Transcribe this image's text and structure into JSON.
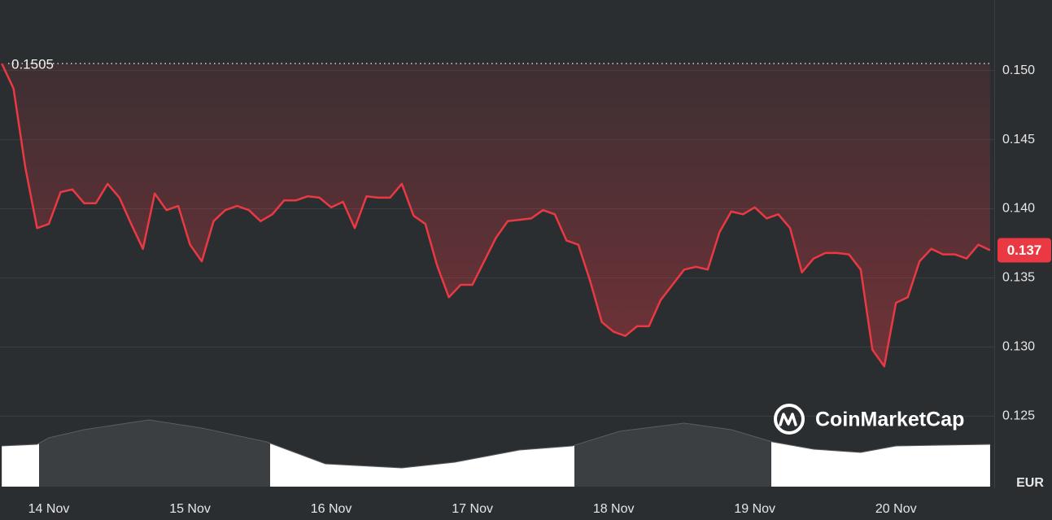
{
  "chart_data": {
    "type": "line",
    "color": "#ea3943",
    "x": [
      -8,
      -6,
      -4,
      -2,
      0,
      2,
      4,
      6,
      8,
      10,
      12,
      14,
      16,
      18,
      20,
      22,
      24,
      26,
      28,
      30,
      32,
      34,
      36,
      38,
      40,
      42,
      44,
      46,
      48,
      50,
      52,
      54,
      56,
      58,
      60,
      62,
      64,
      66,
      68,
      70,
      72,
      74,
      76,
      78,
      80,
      82,
      84,
      86,
      88,
      90,
      92,
      94,
      96,
      98,
      100,
      102,
      104,
      106,
      108,
      110,
      112,
      114,
      116,
      118,
      120,
      122,
      124,
      126,
      128,
      130,
      132,
      134,
      136,
      138,
      140,
      142,
      144,
      146,
      148,
      150,
      152,
      154,
      156,
      158,
      160
    ],
    "values": [
      0.1505,
      0.1487,
      0.143,
      0.1386,
      0.1389,
      0.1412,
      0.1414,
      0.1404,
      0.1404,
      0.1418,
      0.1408,
      0.1389,
      0.1371,
      0.1411,
      0.1399,
      0.1402,
      0.1374,
      0.1362,
      0.1391,
      0.1399,
      0.1402,
      0.1399,
      0.1391,
      0.1396,
      0.1406,
      0.1406,
      0.1409,
      0.1408,
      0.1401,
      0.1405,
      0.1386,
      0.1409,
      0.1408,
      0.1408,
      0.1418,
      0.1395,
      0.1389,
      0.1359,
      0.1336,
      0.1345,
      0.1345,
      0.1362,
      0.1379,
      0.1391,
      0.1392,
      0.1393,
      0.1399,
      0.1396,
      0.1377,
      0.1374,
      0.1348,
      0.1318,
      0.1311,
      0.1308,
      0.1315,
      0.1315,
      0.1334,
      0.1345,
      0.1356,
      0.1358,
      0.1356,
      0.1383,
      0.1398,
      0.1396,
      0.1401,
      0.1393,
      0.1396,
      0.1386,
      0.1354,
      0.1364,
      0.1368,
      0.1368,
      0.1367,
      0.1356,
      0.1298,
      0.1286,
      0.1332,
      0.1336,
      0.1362,
      0.1371,
      0.1367,
      0.1367,
      0.1364,
      0.1374,
      0.137
    ],
    "baseline": 0.1505,
    "xlim": [
      -8.3,
      160.7
    ],
    "xticks": [
      {
        "value": 0,
        "label": "14 Nov"
      },
      {
        "value": 24,
        "label": "15 Nov"
      },
      {
        "value": 48,
        "label": "16 Nov"
      },
      {
        "value": 72,
        "label": "17 Nov"
      },
      {
        "value": 96,
        "label": "18 Nov"
      },
      {
        "value": 120,
        "label": "19 Nov"
      },
      {
        "value": 144,
        "label": "20 Nov"
      }
    ],
    "ylim": [
      0.1199,
      0.1551
    ],
    "yticks": [
      0.125,
      {
        "value": 0.13,
        "label": "0.130"
      },
      0.135,
      {
        "value": 0.14,
        "label": "0.140"
      },
      0.145,
      {
        "value": 0.15,
        "label": "0.150"
      }
    ],
    "grid": true,
    "currency": "EUR",
    "watermark": "CoinMarketCap",
    "volume": {
      "x": [
        -8,
        -2,
        0,
        6,
        17,
        26,
        37,
        47,
        60,
        69,
        80,
        89,
        97,
        108,
        116,
        123,
        130,
        138,
        144,
        160
      ],
      "values": [
        50,
        52,
        60,
        70,
        82,
        72,
        55,
        28,
        23,
        30,
        45,
        50,
        68,
        78,
        70,
        55,
        46,
        42,
        50,
        52
      ],
      "lim": [
        0,
        100
      ]
    }
  }
}
